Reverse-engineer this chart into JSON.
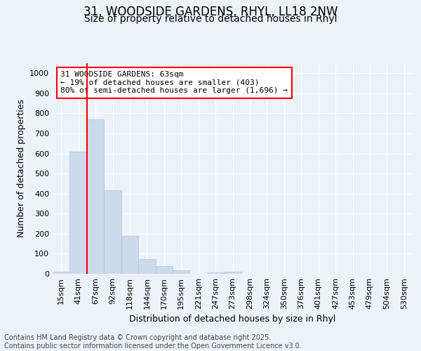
{
  "title_line1": "31, WOODSIDE GARDENS, RHYL, LL18 2NW",
  "title_line2": "Size of property relative to detached houses in Rhyl",
  "xlabel": "Distribution of detached houses by size in Rhyl",
  "ylabel": "Number of detached properties",
  "categories": [
    "15sqm",
    "41sqm",
    "67sqm",
    "92sqm",
    "118sqm",
    "144sqm",
    "170sqm",
    "195sqm",
    "221sqm",
    "247sqm",
    "273sqm",
    "298sqm",
    "324sqm",
    "350sqm",
    "376sqm",
    "401sqm",
    "427sqm",
    "453sqm",
    "479sqm",
    "504sqm",
    "530sqm"
  ],
  "values": [
    10,
    610,
    770,
    415,
    190,
    75,
    38,
    18,
    0,
    7,
    12,
    0,
    0,
    0,
    0,
    0,
    0,
    0,
    0,
    0,
    0
  ],
  "bar_color": "#ccdaed",
  "bar_edge_color": "#b0c4de",
  "vline_color": "red",
  "vline_x_index": 1.5,
  "annotation_box_text": "31 WOODSIDE GARDENS: 63sqm\n← 19% of detached houses are smaller (403)\n80% of semi-detached houses are larger (1,696) →",
  "box_edge_color": "red",
  "ylim": [
    0,
    1050
  ],
  "yticks": [
    0,
    100,
    200,
    300,
    400,
    500,
    600,
    700,
    800,
    900,
    1000
  ],
  "footer_text": "Contains HM Land Registry data © Crown copyright and database right 2025.\nContains public sector information licensed under the Open Government Licence v3.0.",
  "background_color": "#edf2f9",
  "grid_color": "#ffffff",
  "title_fontsize": 12,
  "subtitle_fontsize": 10,
  "axis_label_fontsize": 9,
  "tick_fontsize": 8,
  "annotation_fontsize": 8,
  "footer_fontsize": 7
}
